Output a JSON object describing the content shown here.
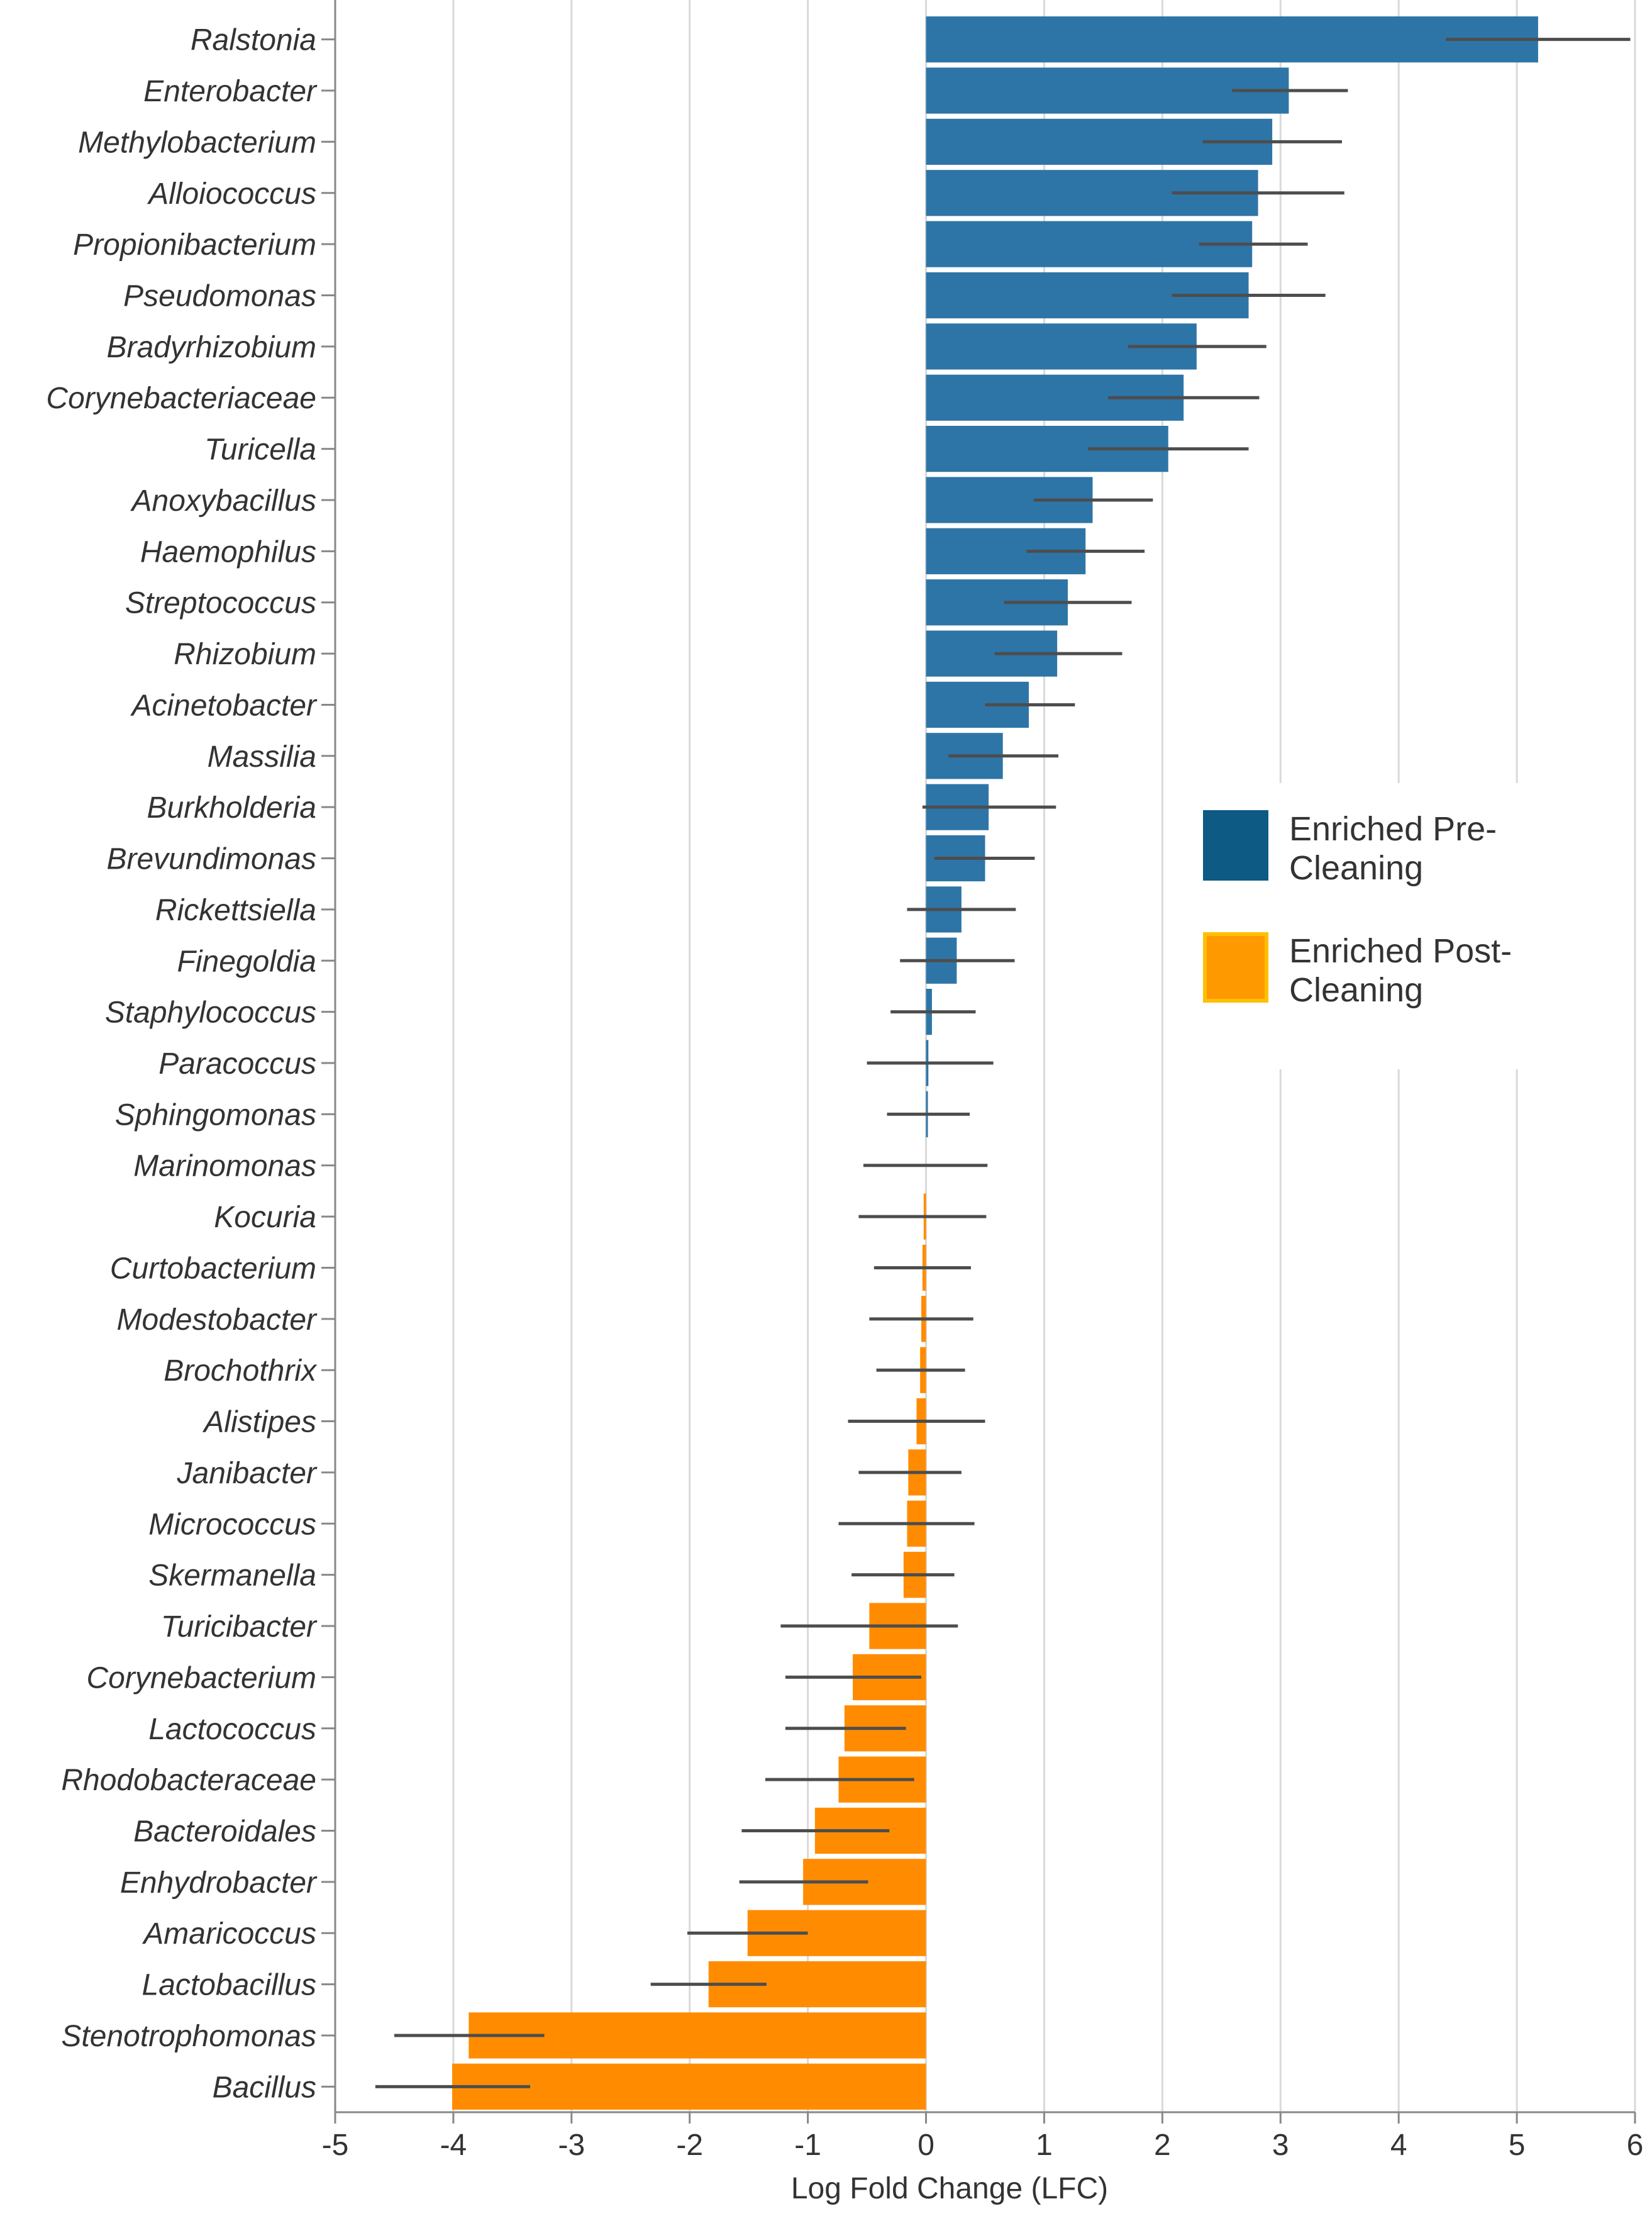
{
  "chart_data": {
    "type": "bar",
    "orientation": "horizontal",
    "xlabel": "Log Fold Change (LFC)",
    "ylabel": "",
    "title": "",
    "xlim": [
      -5,
      6
    ],
    "xticks": [
      -5,
      -4,
      -3,
      -2,
      -1,
      0,
      1,
      2,
      3,
      4,
      5,
      6
    ],
    "grid": "vertical gridlines",
    "legend_position": "right-middle",
    "colors": {
      "pre": "#2e75a7",
      "post": "#ff8c00",
      "legend_pre": "#0d5a85",
      "legend_post": "#ff9900",
      "legend_post_border": "#ffc000",
      "error_bar": "#4d4d4d",
      "grid": "#d9d9d9"
    },
    "legend": [
      {
        "key": "pre",
        "lines": [
          "Enriched Pre-",
          "Cleaning"
        ]
      },
      {
        "key": "post",
        "lines": [
          "Enriched Post-",
          "Cleaning"
        ]
      }
    ],
    "categories": [
      "Ralstonia",
      "Enterobacter",
      "Methylobacterium",
      "Alloiococcus",
      "Propionibacterium",
      "Pseudomonas",
      "Bradyrhizobium",
      "Corynebacteriaceae",
      "Turicella",
      "Anoxybacillus",
      "Haemophilus",
      "Streptococcus",
      "Rhizobium",
      "Acinetobacter",
      "Massilia",
      "Burkholderia",
      "Brevundimonas",
      "Rickettsiella",
      "Finegoldia",
      "Staphylococcus",
      "Paracoccus",
      "Sphingomonas",
      "Marinomonas",
      "Kocuria",
      "Curtobacterium",
      "Modestobacter",
      "Brochothrix",
      "Alistipes",
      "Janibacter",
      "Micrococcus",
      "Skermanella",
      "Turicibacter",
      "Corynebacterium",
      "Lactococcus",
      "Rhodobacteraceae",
      "Bacteroidales",
      "Enhydrobacter",
      "Amaricoccus",
      "Lactobacillus",
      "Stenotrophomonas",
      "Bacillus"
    ],
    "values": [
      5.18,
      3.07,
      2.93,
      2.81,
      2.76,
      2.73,
      2.29,
      2.18,
      2.05,
      1.41,
      1.35,
      1.2,
      1.11,
      0.87,
      0.65,
      0.53,
      0.5,
      0.3,
      0.26,
      0.05,
      0.02,
      0.01,
      0.0,
      -0.02,
      -0.03,
      -0.04,
      -0.05,
      -0.08,
      -0.15,
      -0.16,
      -0.19,
      -0.48,
      -0.62,
      -0.69,
      -0.74,
      -0.94,
      -1.04,
      -1.51,
      -1.84,
      -3.87,
      -4.01
    ],
    "error_low": [
      4.4,
      2.59,
      2.34,
      2.08,
      2.31,
      2.08,
      1.71,
      1.54,
      1.37,
      0.91,
      0.85,
      0.66,
      0.58,
      0.5,
      0.19,
      -0.03,
      0.07,
      -0.16,
      -0.22,
      -0.3,
      -0.5,
      -0.33,
      -0.53,
      -0.57,
      -0.44,
      -0.48,
      -0.42,
      -0.66,
      -0.57,
      -0.74,
      -0.63,
      -1.23,
      -1.19,
      -1.19,
      -1.36,
      -1.56,
      -1.58,
      -2.02,
      -2.33,
      -4.5,
      -4.66
    ],
    "error_high": [
      5.96,
      3.57,
      3.52,
      3.54,
      3.23,
      3.38,
      2.88,
      2.82,
      2.73,
      1.92,
      1.85,
      1.74,
      1.66,
      1.26,
      1.12,
      1.1,
      0.92,
      0.76,
      0.75,
      0.42,
      0.57,
      0.37,
      0.52,
      0.51,
      0.38,
      0.4,
      0.33,
      0.5,
      0.3,
      0.41,
      0.24,
      0.27,
      -0.04,
      -0.17,
      -0.1,
      -0.31,
      -0.49,
      -1.0,
      -1.35,
      -3.23,
      -3.35
    ]
  }
}
